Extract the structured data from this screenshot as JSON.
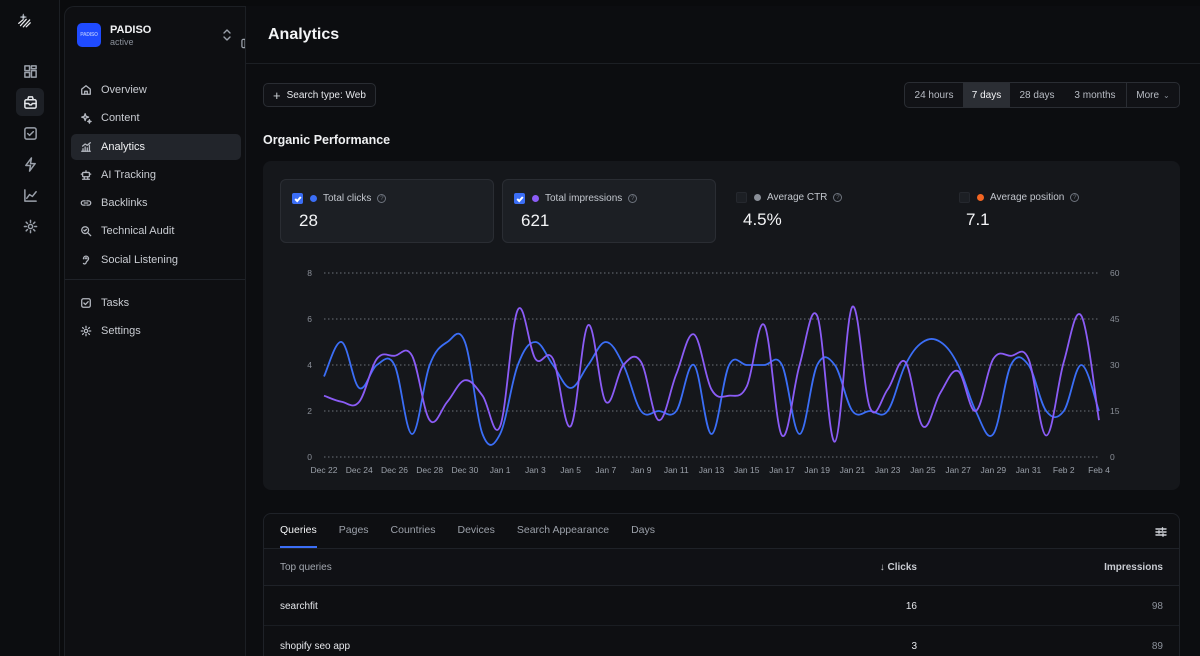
{
  "workspace": {
    "logo_text": "PADISO",
    "name": "PADISO",
    "status": "active"
  },
  "sidebar": {
    "items": [
      {
        "label": "Overview",
        "icon": "home-icon"
      },
      {
        "label": "Content",
        "icon": "sparkle-icon"
      },
      {
        "label": "Analytics",
        "icon": "analytics-icon",
        "active": true
      },
      {
        "label": "AI Tracking",
        "icon": "robot-icon"
      },
      {
        "label": "Backlinks",
        "icon": "link-icon"
      },
      {
        "label": "Technical Audit",
        "icon": "audit-icon"
      },
      {
        "label": "Social Listening",
        "icon": "ear-icon"
      }
    ],
    "secondary": [
      {
        "label": "Tasks",
        "icon": "task-icon"
      },
      {
        "label": "Settings",
        "icon": "gear-icon"
      }
    ]
  },
  "header": {
    "title": "Analytics"
  },
  "toolbar": {
    "search_type_label": "Search type: Web",
    "ranges": [
      "24 hours",
      "7 days",
      "28 days",
      "3 months"
    ],
    "active_range": "7 days",
    "more_label": "More"
  },
  "section": {
    "title": "Organic Performance"
  },
  "metrics": [
    {
      "label": "Total clicks",
      "value": "28",
      "checked": true,
      "color": "#3b6ef6"
    },
    {
      "label": "Total impressions",
      "value": "621",
      "checked": true,
      "color": "#8b5cf6"
    },
    {
      "label": "Average CTR",
      "value": "4.5%",
      "checked": false,
      "color": "#8a8f98"
    },
    {
      "label": "Average position",
      "value": "7.1",
      "checked": false,
      "color": "#f26522"
    }
  ],
  "chart_data": {
    "type": "line",
    "x": [
      "Dec 22",
      "Dec 23",
      "Dec 24",
      "Dec 25",
      "Dec 26",
      "Dec 27",
      "Dec 28",
      "Dec 29",
      "Dec 30",
      "Dec 31",
      "Jan 1",
      "Jan 2",
      "Jan 3",
      "Jan 4",
      "Jan 5",
      "Jan 6",
      "Jan 7",
      "Jan 8",
      "Jan 9",
      "Jan 10",
      "Jan 11",
      "Jan 12",
      "Jan 13",
      "Jan 14",
      "Jan 15",
      "Jan 16",
      "Jan 17",
      "Jan 18",
      "Jan 19",
      "Jan 20",
      "Jan 21",
      "Jan 22",
      "Jan 23",
      "Jan 24",
      "Jan 25",
      "Jan 26",
      "Jan 27",
      "Jan 28",
      "Jan 29",
      "Jan 30",
      "Jan 31",
      "Feb 1",
      "Feb 2",
      "Feb 3",
      "Feb 4"
    ],
    "x_tick_labels": [
      "Dec 22",
      "Dec 24",
      "Dec 26",
      "Dec 28",
      "Dec 30",
      "Jan 1",
      "Jan 3",
      "Jan 5",
      "Jan 7",
      "Jan 9",
      "Jan 11",
      "Jan 13",
      "Jan 15",
      "Jan 17",
      "Jan 19",
      "Jan 21",
      "Jan 23",
      "Jan 25",
      "Jan 27",
      "Jan 29",
      "Jan 31",
      "Feb 2",
      "Feb 4"
    ],
    "y_left_ticks": [
      "0",
      "2",
      "4",
      "6",
      "8"
    ],
    "y_right_ticks": [
      "0",
      "15",
      "30",
      "45",
      "60"
    ],
    "ylim_left": [
      0,
      8
    ],
    "ylim_right": [
      0,
      60
    ],
    "grid": "horizontal dotted",
    "series": [
      {
        "axis": "left",
        "color": "#3b6ef6",
        "values": [
          3.5,
          5,
          3,
          4,
          4,
          1,
          4,
          5,
          5,
          1,
          1,
          4,
          5,
          4,
          3,
          4,
          5,
          4,
          2,
          2,
          2,
          4,
          1,
          4,
          4,
          4,
          4,
          1,
          4,
          4,
          2,
          2,
          2,
          4,
          5,
          5,
          4,
          2,
          1,
          4,
          4,
          2,
          2,
          4,
          2
        ]
      },
      {
        "axis": "right",
        "color": "#8b5cf6",
        "values": [
          20,
          18,
          18,
          32,
          33,
          33,
          12,
          18,
          25,
          20,
          10,
          48,
          32,
          32,
          10,
          43,
          18,
          30,
          31,
          12,
          27,
          40,
          22,
          20,
          23,
          43,
          7,
          30,
          46,
          5,
          49,
          16,
          22,
          31,
          10,
          21,
          28,
          15,
          32,
          33,
          32,
          7,
          31,
          46,
          12
        ]
      }
    ]
  },
  "table": {
    "tabs": [
      "Queries",
      "Pages",
      "Countries",
      "Devices",
      "Search Appearance",
      "Days"
    ],
    "active_tab": "Queries",
    "columns": {
      "query": "Top queries",
      "clicks": "↓ Clicks",
      "impressions": "Impressions"
    },
    "rows": [
      {
        "query": "searchfit",
        "clicks": "16",
        "impressions": "98"
      },
      {
        "query": "shopify seo app",
        "clicks": "3",
        "impressions": "89"
      }
    ]
  }
}
